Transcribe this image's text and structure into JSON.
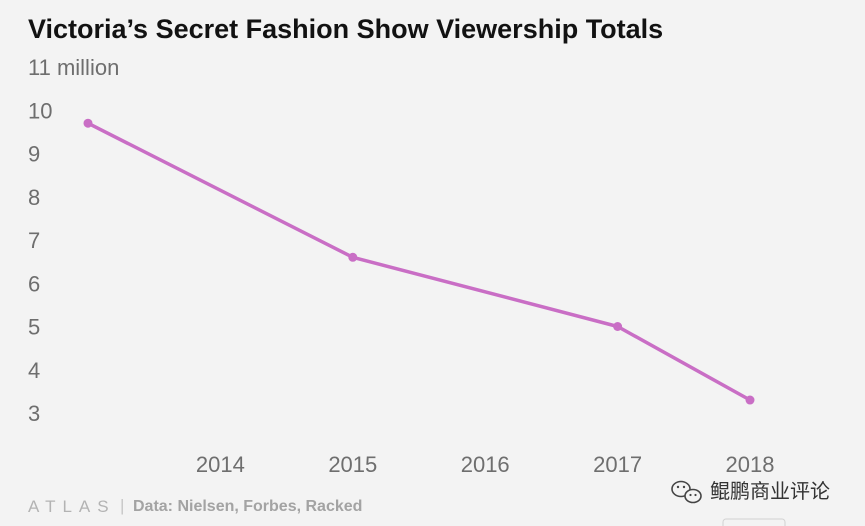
{
  "chart_data": {
    "type": "line",
    "title": "Victoria’s Secret Fashion Show Viewership Totals",
    "ylabel": "",
    "xlabel": "",
    "y_ticks": [
      "11 million",
      "10",
      "9",
      "8",
      "7",
      "6",
      "5",
      "4",
      "3"
    ],
    "y_tick_values": [
      11,
      10,
      9,
      8,
      7,
      6,
      5,
      4,
      3
    ],
    "x_ticks": [
      "2014",
      "2015",
      "2016",
      "2017",
      "2018"
    ],
    "x_tick_values": [
      2014,
      2015,
      2016,
      2017,
      2018
    ],
    "ylim": [
      3,
      11
    ],
    "xlim": [
      2013,
      2018
    ],
    "grid": false,
    "series": [
      {
        "x": [
          2013,
          2015,
          2017,
          2018
        ],
        "y": [
          9.7,
          6.6,
          5.0,
          3.3
        ],
        "color": "#c96ec5"
      }
    ]
  },
  "footer": {
    "brand": "ATLAS",
    "separator": "|",
    "source": "Data: Nielsen, Forbes, Racked"
  },
  "watermark": {
    "text": "鲲鹏商业评论",
    "icon": "wechat-icon"
  }
}
